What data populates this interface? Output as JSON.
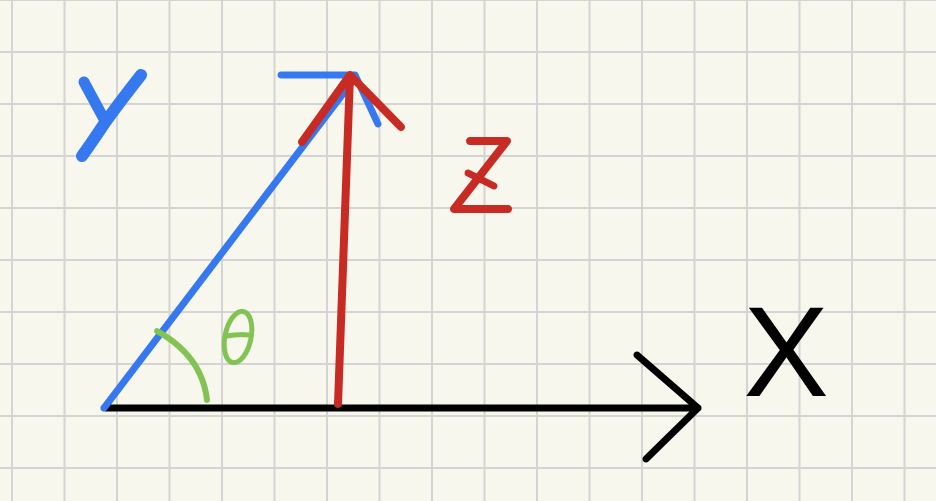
{
  "diagram": {
    "labels": {
      "x": "X",
      "y": "Y",
      "z": "Z",
      "theta": "θ"
    },
    "colors": {
      "background": "#f7f7ee",
      "grid": "#d4d4d4",
      "x_vector": "#000000",
      "y_vector": "#3578ef",
      "z_vector": "#c82a24",
      "theta_arc": "#83c353"
    }
  }
}
